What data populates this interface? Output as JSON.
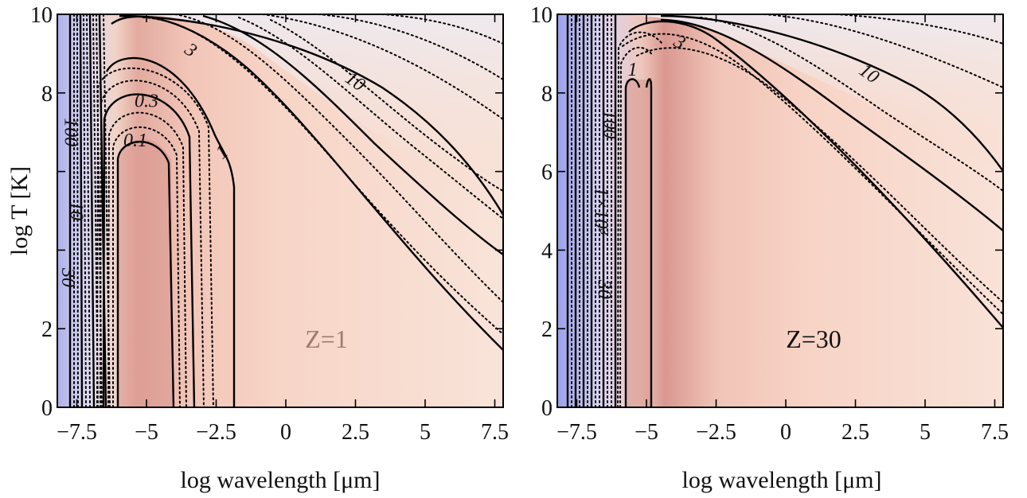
{
  "chart_data": [
    {
      "type": "heatmap",
      "panel": "left",
      "xlabel": "log wavelength [μm]",
      "ylabel": "log T [K]",
      "xlim": [
        -8.2,
        7.8
      ],
      "ylim": [
        0,
        10
      ],
      "xticks": [
        -7.5,
        -5,
        -2.5,
        0,
        2.5,
        5,
        7.5
      ],
      "xtick_labels": [
        "−7.5",
        "−5",
        "−2.5",
        "0",
        "2.5",
        "5",
        "7.5"
      ],
      "yticks": [
        0,
        2,
        8,
        10
      ],
      "ytick_labels": [
        "0",
        "2",
        "8",
        "10"
      ],
      "annotation": "Z=1",
      "annotation_color": "#9c7c70",
      "colors": {
        "low": "#c9c7f2",
        "mid": "#f5d6c8",
        "high": "#d69b90",
        "far": "#f1ecec"
      },
      "contour_labels": [
        {
          "text": "0.1",
          "x": -5.4,
          "y": 6.8,
          "rotate": 0
        },
        {
          "text": "0.3",
          "x": -5.0,
          "y": 7.8,
          "rotate": 0
        },
        {
          "text": "1",
          "x": -2.3,
          "y": 6.5,
          "rotate": -40
        },
        {
          "text": "3",
          "x": -3.4,
          "y": 9.1,
          "rotate": 35
        },
        {
          "text": "10",
          "x": 2.5,
          "y": 8.3,
          "rotate": 35
        },
        {
          "text": "100",
          "x": -7.7,
          "y": 7.0,
          "rotate": 90
        },
        {
          "text": "10",
          "x": -7.5,
          "y": 5.0,
          "rotate": 90
        },
        {
          "text": "30",
          "x": -7.8,
          "y": 3.3,
          "rotate": 90
        }
      ]
    },
    {
      "type": "heatmap",
      "panel": "right",
      "xlabel": "log wavelength [μm]",
      "ylabel": "",
      "xlim": [
        -8.2,
        7.8
      ],
      "ylim": [
        0,
        10
      ],
      "xticks": [
        -7.5,
        -5,
        -2.5,
        0,
        2.5,
        5,
        7.5
      ],
      "xtick_labels": [
        "−7.5",
        "−5",
        "−2.5",
        "0",
        "2.5",
        "5",
        "7.5"
      ],
      "yticks": [
        0,
        2,
        4,
        6,
        8,
        10
      ],
      "ytick_labels": [
        "0",
        "2",
        "4",
        "6",
        "8",
        "10"
      ],
      "annotation": "Z=30",
      "annotation_color": "#111111",
      "colors": {
        "low": "#c9c7f2",
        "mid": "#f7d5c6",
        "high": "#dc9f92",
        "far": "#f1ecec"
      },
      "contour_labels": [
        {
          "text": "1",
          "x": -5.5,
          "y": 8.6,
          "rotate": 0
        },
        {
          "text": "3",
          "x": -3.8,
          "y": 9.3,
          "rotate": 30
        },
        {
          "text": "10",
          "x": 3.0,
          "y": 8.5,
          "rotate": 35
        },
        {
          "text": "100",
          "x": -6.3,
          "y": 7.2,
          "rotate": 90
        },
        {
          "text": "1×10³",
          "x": -6.6,
          "y": 5.0,
          "rotate": 90
        },
        {
          "text": "30",
          "x": -6.5,
          "y": 3.0,
          "rotate": 90
        }
      ]
    }
  ]
}
